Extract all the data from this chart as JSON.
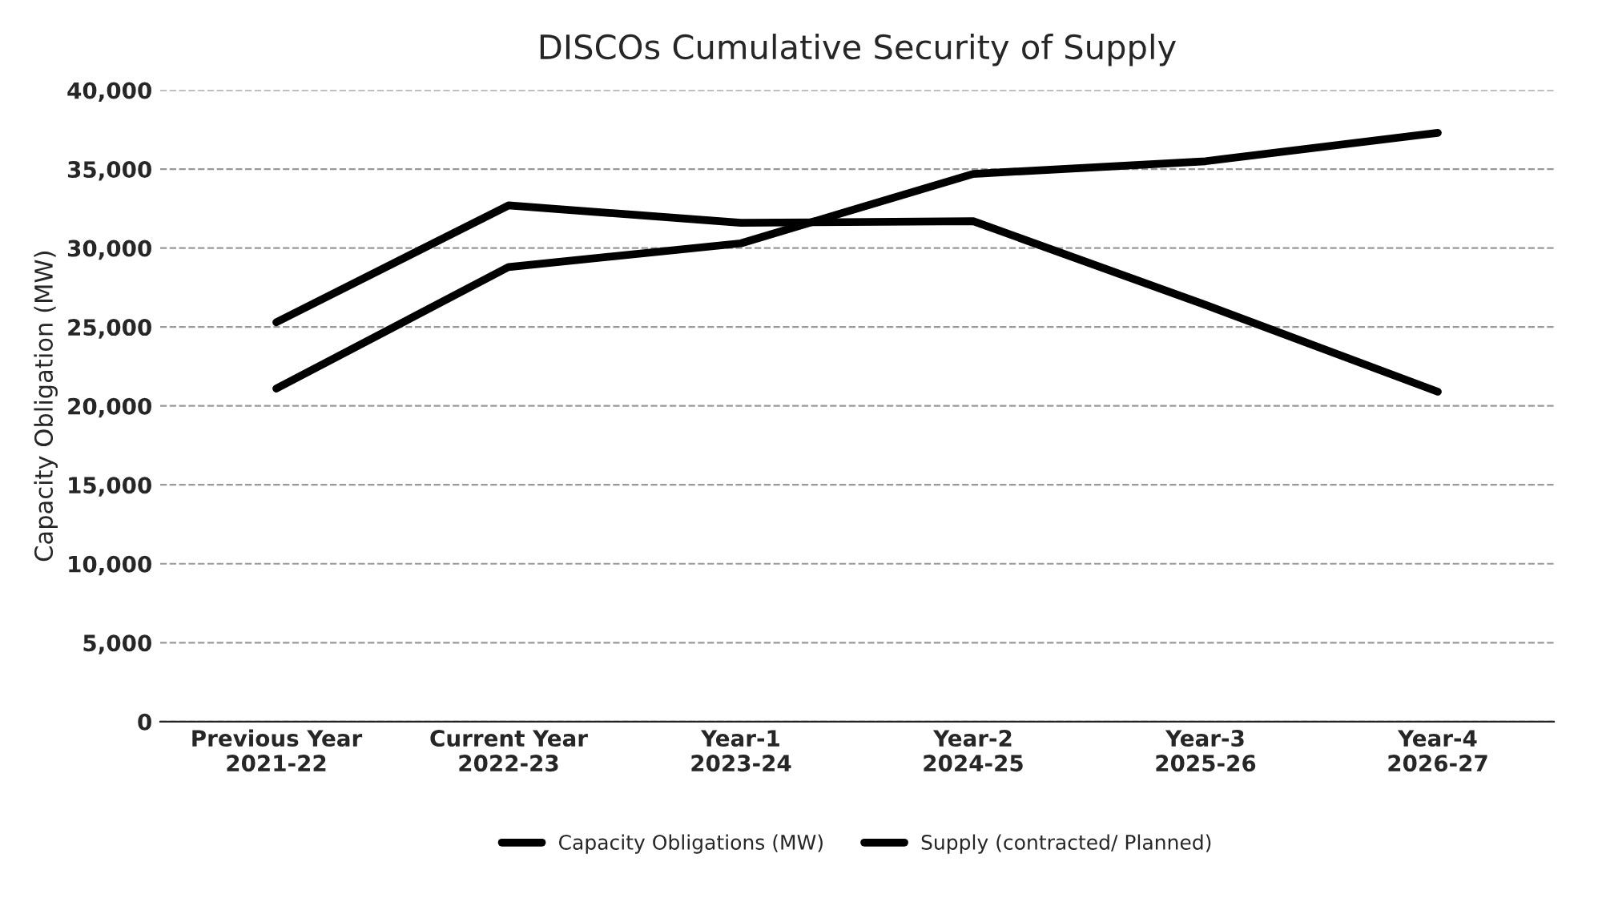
{
  "chart_data": {
    "type": "line",
    "title": "DISCOs Cumulative Security of Supply",
    "ylabel": "Capacity Obligation (MW)",
    "categories": [
      "Previous Year\n2021-22",
      "Current Year\n2022-23",
      "Year-1\n2023-24",
      "Year-2\n2024-25",
      "Year-3\n2025-26",
      "Year-4\n2026-27"
    ],
    "series": [
      {
        "name": "Capacity Obligations (MW)",
        "color": "#000000",
        "values": [
          21100,
          28800,
          30300,
          34700,
          35500,
          37300
        ]
      },
      {
        "name": "Supply (contracted/ Planned)",
        "color": "#000000",
        "values": [
          25300,
          32700,
          31600,
          31700,
          26400,
          20900
        ]
      }
    ],
    "ylim": [
      0,
      40000
    ],
    "yticks": [
      {
        "value": 0,
        "label": "0"
      },
      {
        "value": 5000,
        "label": "5,000"
      },
      {
        "value": 10000,
        "label": "10,000"
      },
      {
        "value": 15000,
        "label": "15,000"
      },
      {
        "value": 20000,
        "label": "20,000"
      },
      {
        "value": 25000,
        "label": "25,000"
      },
      {
        "value": 30000,
        "label": "30,000"
      },
      {
        "value": 35000,
        "label": "35,000"
      },
      {
        "value": 40000,
        "label": "40,000"
      }
    ],
    "grid": "y",
    "legend": "bottom",
    "line_style": "solid",
    "marker": "none"
  }
}
